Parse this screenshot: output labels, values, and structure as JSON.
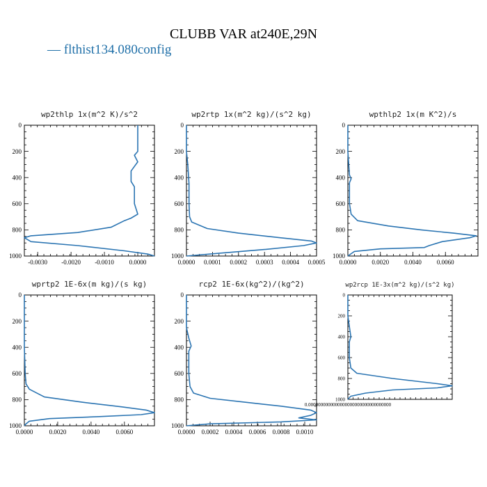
{
  "title": "CLUBB VAR at240E,29N",
  "legend": {
    "label": "— flthist134.080config",
    "color": "#2a74b2"
  },
  "chart_data": [
    {
      "type": "line",
      "title": "wp2thlp   1x(m^2 K)/s^2",
      "xlim": [
        -0.0034,
        0.0005
      ],
      "ylim": [
        1000,
        0
      ],
      "x_ticks": [
        "-0.0030",
        "-0.0020",
        "-0.0010",
        "0.0000"
      ],
      "x_tick_values": [
        -0.003,
        -0.002,
        -0.001,
        0.0
      ],
      "y_ticks": [
        "0",
        "200",
        "400",
        "600",
        "800",
        "1000"
      ],
      "y_tick_values": [
        0,
        200,
        400,
        600,
        800,
        1000
      ],
      "series": [
        {
          "color": "#2a74b2",
          "points": [
            [
              0.0,
              0
            ],
            [
              0.0,
              100
            ],
            [
              0.0,
              200
            ],
            [
              -0.0001,
              230
            ],
            [
              0.0,
              280
            ],
            [
              -0.0002,
              350
            ],
            [
              -0.0002,
              430
            ],
            [
              -0.0001,
              470
            ],
            [
              -0.0001,
              600
            ],
            [
              0.0,
              680
            ],
            [
              -0.0002,
              710
            ],
            [
              -0.0004,
              730
            ],
            [
              -0.0008,
              780
            ],
            [
              -0.0018,
              820
            ],
            [
              -0.0032,
              845
            ],
            [
              -0.0034,
              860
            ],
            [
              -0.0032,
              890
            ],
            [
              -0.0018,
              920
            ],
            [
              -0.0004,
              960
            ],
            [
              0.0003,
              985
            ],
            [
              0.0005,
              1000
            ]
          ]
        }
      ]
    },
    {
      "type": "line",
      "title": "wp2rtp   1x(m^2 kg)/(s^2 kg)",
      "xlim": [
        0.0,
        0.0005
      ],
      "ylim": [
        1000,
        0
      ],
      "x_ticks": [
        "0.0000",
        "0.0001",
        "0.0002",
        "0.0003",
        "0.0004",
        "0.0005"
      ],
      "x_tick_values": [
        0.0,
        0.0001,
        0.0002,
        0.0003,
        0.0004,
        0.0005
      ],
      "y_ticks": [
        "0",
        "200",
        "400",
        "600",
        "800",
        "1000"
      ],
      "y_tick_values": [
        0,
        200,
        400,
        600,
        800,
        1000
      ],
      "series": [
        {
          "color": "#2a74b2",
          "points": [
            [
              0.0,
              0
            ],
            [
              0.0,
              200
            ],
            [
              5e-06,
              300
            ],
            [
              1e-05,
              450
            ],
            [
              1e-05,
              600
            ],
            [
              1.2e-05,
              700
            ],
            [
              2e-05,
              740
            ],
            [
              8e-05,
              790
            ],
            [
              0.0002,
              825
            ],
            [
              0.00036,
              860
            ],
            [
              0.00048,
              885
            ],
            [
              0.0005,
              900
            ],
            [
              0.00045,
              920
            ],
            [
              0.0003,
              950
            ],
            [
              0.00012,
              980
            ],
            [
              0.0,
              1000
            ]
          ]
        }
      ]
    },
    {
      "type": "line",
      "title": "wpthlp2   1x(m K^2)/s",
      "xlim": [
        0.0,
        0.008
      ],
      "ylim": [
        1000,
        0
      ],
      "x_ticks": [
        "0.0000",
        "0.0020",
        "0.0040",
        "0.0060"
      ],
      "x_tick_values": [
        0.0,
        0.002,
        0.004,
        0.006
      ],
      "y_ticks": [
        "0",
        "200",
        "400",
        "600",
        "800",
        "1000"
      ],
      "y_tick_values": [
        0,
        200,
        400,
        600,
        800,
        1000
      ],
      "series": [
        {
          "color": "#2a74b2",
          "points": [
            [
              0.0,
              0
            ],
            [
              0.0,
              200
            ],
            [
              0.0001,
              380
            ],
            [
              0.0002,
              410
            ],
            [
              0.0001,
              440
            ],
            [
              0.0001,
              600
            ],
            [
              0.0002,
              680
            ],
            [
              0.0006,
              730
            ],
            [
              0.0025,
              770
            ],
            [
              0.0045,
              800
            ],
            [
              0.0065,
              825
            ],
            [
              0.0079,
              845
            ],
            [
              0.0075,
              860
            ],
            [
              0.0058,
              890
            ],
            [
              0.005,
              920
            ],
            [
              0.0047,
              935
            ],
            [
              0.002,
              945
            ],
            [
              0.0004,
              965
            ],
            [
              0.0,
              1000
            ]
          ]
        }
      ]
    },
    {
      "type": "line",
      "title": "wprtp2   1E-6x(m kg)/(s kg)",
      "xlim": [
        0.0,
        0.0078
      ],
      "ylim": [
        1000,
        0
      ],
      "x_ticks": [
        "0.0000",
        "0.0020",
        "0.0040",
        "0.0060"
      ],
      "x_tick_values": [
        0.0,
        0.002,
        0.004,
        0.006
      ],
      "y_ticks": [
        "0",
        "200",
        "400",
        "600",
        "800",
        "1000"
      ],
      "y_tick_values": [
        0,
        200,
        400,
        600,
        800,
        1000
      ],
      "series": [
        {
          "color": "#2a74b2",
          "points": [
            [
              0.0,
              0
            ],
            [
              0.0,
              400
            ],
            [
              5e-05,
              600
            ],
            [
              0.0001,
              680
            ],
            [
              0.0003,
              720
            ],
            [
              0.0012,
              780
            ],
            [
              0.0035,
              820
            ],
            [
              0.0058,
              855
            ],
            [
              0.0073,
              880
            ],
            [
              0.0078,
              900
            ],
            [
              0.007,
              915
            ],
            [
              0.0045,
              930
            ],
            [
              0.0015,
              945
            ],
            [
              0.0003,
              965
            ],
            [
              0.0001,
              985
            ],
            [
              0.0,
              1000
            ]
          ]
        }
      ]
    },
    {
      "type": "line",
      "title": "rcp2   1E-6x(kg^2)/(kg^2)",
      "xlim": [
        0.0,
        0.0011
      ],
      "ylim": [
        1000,
        0
      ],
      "x_ticks": [
        "0.0000",
        "0.0002",
        "0.0004",
        "0.0006",
        "0.0008",
        "0.0010"
      ],
      "x_tick_values": [
        0.0,
        0.0002,
        0.0004,
        0.0006,
        0.0008,
        0.001
      ],
      "y_ticks": [
        "0",
        "200",
        "400",
        "600",
        "800",
        "1000"
      ],
      "y_tick_values": [
        0,
        200,
        400,
        600,
        800,
        1000
      ],
      "series": [
        {
          "color": "#2a74b2",
          "points": [
            [
              0.0,
              0
            ],
            [
              0.0,
              250
            ],
            [
              2e-05,
              330
            ],
            [
              4e-05,
              390
            ],
            [
              2e-05,
              430
            ],
            [
              2e-05,
              600
            ],
            [
              3e-05,
              700
            ],
            [
              6e-05,
              750
            ],
            [
              0.0002,
              790
            ],
            [
              0.0005,
              820
            ],
            [
              0.0008,
              850
            ],
            [
              0.00105,
              880
            ],
            [
              0.0011,
              900
            ],
            [
              0.00105,
              920
            ],
            [
              0.00095,
              940
            ],
            [
              0.0011,
              955
            ],
            [
              0.0008,
              970
            ],
            [
              0.0002,
              985
            ],
            [
              0.0,
              1000
            ]
          ]
        }
      ]
    },
    {
      "type": "line",
      "title": "wp2rcp   1E-3x(m^2 kg)/(s^2 kg)",
      "xlim": [
        0.0,
        0.0007
      ],
      "ylim": [
        1000,
        0
      ],
      "x_ticks": [
        "0.0000000000000000000000000000000000"
      ],
      "x_tick_values": [
        0.0
      ],
      "y_ticks": [
        "0",
        "200",
        "400",
        "600",
        "800",
        "1000"
      ],
      "y_tick_values": [
        0,
        200,
        400,
        600,
        800,
        1000
      ],
      "series": [
        {
          "color": "#2a74b2",
          "points": [
            [
              0.0,
              0
            ],
            [
              0.0,
              200
            ],
            [
              1e-05,
              300
            ],
            [
              2e-05,
              400
            ],
            [
              1e-05,
              450
            ],
            [
              1e-05,
              600
            ],
            [
              2e-05,
              700
            ],
            [
              6e-05,
              750
            ],
            [
              0.0003,
              800
            ],
            [
              0.0006,
              850
            ],
            [
              0.0007,
              870
            ],
            [
              0.0006,
              890
            ],
            [
              0.0003,
              910
            ],
            [
              0.00012,
              940
            ],
            [
              2e-05,
              970
            ],
            [
              0.0,
              1000
            ]
          ]
        }
      ]
    }
  ]
}
